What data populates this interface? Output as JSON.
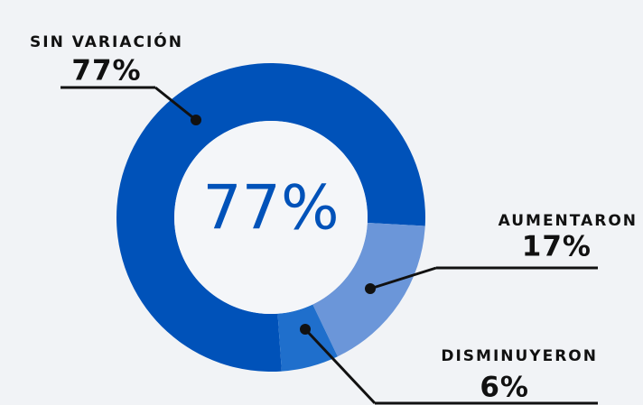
{
  "chart_data": {
    "type": "donut",
    "categories": [
      "SIN VARIACIÓN",
      "AUMENTARON",
      "DISMINUYERON"
    ],
    "values": [
      77,
      17,
      6
    ],
    "value_labels": [
      "77%",
      "17%",
      "6%"
    ],
    "colors": [
      "#0052b9",
      "#6b96d9",
      "#1f6fcc"
    ]
  }
}
